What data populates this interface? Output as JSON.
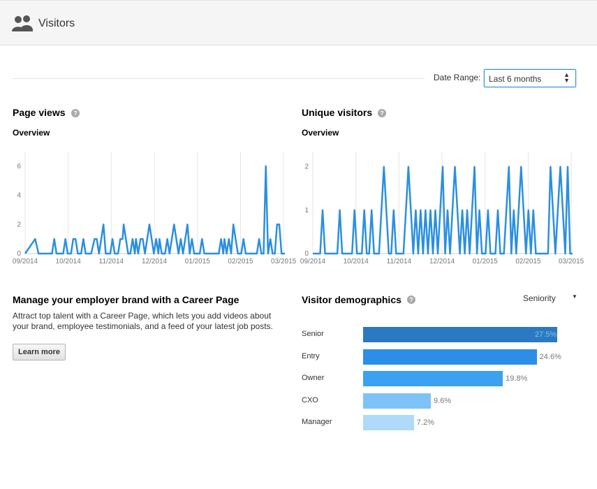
{
  "header": {
    "title": "Visitors",
    "icon": "users-icon"
  },
  "date_range": {
    "label": "Date Range:",
    "selected": "Last 6 months"
  },
  "page_views": {
    "title": "Page views",
    "subtitle": "Overview",
    "chart_data": {
      "type": "line",
      "color": "#2b8fe0",
      "x_ticks": [
        "09/2014",
        "10/2014",
        "11/2014",
        "12/2014",
        "01/2015",
        "02/2015",
        "03/2015"
      ],
      "y_ticks": [
        "0",
        "2",
        "4",
        "6"
      ],
      "ylim": [
        0,
        7
      ],
      "grid": true,
      "spikes": [
        [
          9,
          1
        ],
        [
          12,
          0
        ],
        [
          24,
          0
        ],
        [
          26,
          1
        ],
        [
          28,
          0
        ],
        [
          34,
          0
        ],
        [
          36,
          1
        ],
        [
          38,
          0
        ],
        [
          41,
          0
        ],
        [
          43,
          1
        ],
        [
          45,
          1
        ],
        [
          47,
          0
        ],
        [
          50,
          0
        ],
        [
          52,
          1
        ],
        [
          54,
          0
        ],
        [
          59,
          0
        ],
        [
          62,
          1
        ],
        [
          64,
          1
        ],
        [
          66,
          0
        ],
        [
          68,
          1
        ],
        [
          70,
          2
        ],
        [
          72,
          0
        ],
        [
          76,
          0
        ],
        [
          78,
          1
        ],
        [
          80,
          0
        ],
        [
          83,
          0
        ],
        [
          85,
          1
        ],
        [
          87,
          1
        ],
        [
          88,
          2
        ],
        [
          90,
          1
        ],
        [
          92,
          0
        ],
        [
          94,
          0
        ],
        [
          96,
          1
        ],
        [
          98,
          0
        ],
        [
          99,
          1
        ],
        [
          101,
          0
        ],
        [
          103,
          1
        ],
        [
          105,
          1
        ],
        [
          107,
          0
        ],
        [
          109,
          1
        ],
        [
          111,
          2
        ],
        [
          113,
          1
        ],
        [
          115,
          0
        ],
        [
          117,
          1
        ],
        [
          119,
          0
        ],
        [
          120,
          1
        ],
        [
          122,
          0
        ],
        [
          125,
          0
        ],
        [
          127,
          1
        ],
        [
          129,
          0
        ],
        [
          131,
          1
        ],
        [
          133,
          2
        ],
        [
          135,
          1
        ],
        [
          137,
          0
        ],
        [
          139,
          1
        ],
        [
          141,
          0
        ],
        [
          143,
          1
        ],
        [
          145,
          2
        ],
        [
          147,
          0
        ],
        [
          149,
          1
        ],
        [
          151,
          0
        ],
        [
          156,
          0
        ],
        [
          158,
          1
        ],
        [
          160,
          0
        ],
        [
          173,
          0
        ],
        [
          175,
          1
        ],
        [
          177,
          0
        ],
        [
          178,
          1
        ],
        [
          180,
          0
        ],
        [
          182,
          1
        ],
        [
          184,
          0
        ],
        [
          186,
          2
        ],
        [
          188,
          1
        ],
        [
          190,
          0
        ],
        [
          193,
          0
        ],
        [
          195,
          1
        ],
        [
          197,
          0
        ],
        [
          207,
          0
        ],
        [
          209,
          1
        ],
        [
          211,
          0
        ],
        [
          213,
          0
        ],
        [
          215,
          6
        ],
        [
          217,
          0
        ],
        [
          219,
          1
        ],
        [
          221,
          0
        ],
        [
          223,
          0
        ],
        [
          225,
          2
        ],
        [
          227,
          2
        ],
        [
          229,
          0
        ]
      ],
      "x_max": 232
    }
  },
  "unique_visitors": {
    "title": "Unique visitors",
    "subtitle": "Overview",
    "chart_data": {
      "type": "line",
      "color": "#2b8fe0",
      "x_ticks": [
        "09/2014",
        "10/2014",
        "11/2014",
        "12/2014",
        "01/2015",
        "02/2015",
        "03/2015"
      ],
      "y_ticks": [
        "0",
        "1",
        "2"
      ],
      "ylim": [
        0,
        2.35
      ],
      "grid": true,
      "spikes": [
        [
          6,
          0
        ],
        [
          8,
          1
        ],
        [
          10,
          0
        ],
        [
          20,
          0
        ],
        [
          22,
          1
        ],
        [
          24,
          0
        ],
        [
          32,
          0
        ],
        [
          34,
          1
        ],
        [
          36,
          0
        ],
        [
          40,
          0
        ],
        [
          42,
          1
        ],
        [
          44,
          0
        ],
        [
          46,
          0
        ],
        [
          48,
          1
        ],
        [
          50,
          0
        ],
        [
          54,
          0
        ],
        [
          56,
          1
        ],
        [
          58,
          2
        ],
        [
          60,
          1
        ],
        [
          62,
          0
        ],
        [
          64,
          0
        ],
        [
          66,
          1
        ],
        [
          68,
          0
        ],
        [
          74,
          0
        ],
        [
          76,
          1
        ],
        [
          78,
          2
        ],
        [
          80,
          1
        ],
        [
          82,
          0
        ],
        [
          84,
          1
        ],
        [
          86,
          0
        ],
        [
          88,
          1
        ],
        [
          90,
          0
        ],
        [
          92,
          1
        ],
        [
          94,
          0
        ],
        [
          96,
          1
        ],
        [
          98,
          0
        ],
        [
          100,
          1
        ],
        [
          102,
          0
        ],
        [
          104,
          1
        ],
        [
          106,
          2
        ],
        [
          108,
          0
        ],
        [
          110,
          1
        ],
        [
          112,
          0
        ],
        [
          114,
          1
        ],
        [
          116,
          2
        ],
        [
          118,
          1
        ],
        [
          120,
          0
        ],
        [
          122,
          1
        ],
        [
          124,
          0
        ],
        [
          126,
          1
        ],
        [
          128,
          0
        ],
        [
          130,
          1
        ],
        [
          132,
          2
        ],
        [
          134,
          0
        ],
        [
          136,
          1
        ],
        [
          138,
          0
        ],
        [
          141,
          0
        ],
        [
          143,
          1
        ],
        [
          145,
          0
        ],
        [
          149,
          0
        ],
        [
          151,
          1
        ],
        [
          153,
          0
        ],
        [
          156,
          0
        ],
        [
          158,
          1
        ],
        [
          160,
          2
        ],
        [
          162,
          0
        ],
        [
          164,
          1
        ],
        [
          166,
          0
        ],
        [
          168,
          1
        ],
        [
          170,
          2
        ],
        [
          172,
          1
        ],
        [
          174,
          0
        ],
        [
          176,
          1
        ],
        [
          178,
          0
        ],
        [
          180,
          1
        ],
        [
          182,
          0
        ],
        [
          192,
          0
        ],
        [
          194,
          2
        ],
        [
          196,
          1
        ],
        [
          198,
          0
        ],
        [
          200,
          1
        ],
        [
          202,
          2
        ],
        [
          204,
          1
        ],
        [
          206,
          0
        ],
        [
          208,
          2
        ],
        [
          210,
          0
        ]
      ],
      "x_max": 212
    }
  },
  "career": {
    "title": "Manage your employer brand with a Career Page",
    "description": "Attract top talent with a Career Page, which lets you add videos about your brand, employee testimonials, and a feed of your latest job posts.",
    "button": "Learn more"
  },
  "demographics": {
    "title": "Visitor demographics",
    "selector": "Seniority",
    "chart_data": {
      "type": "bar",
      "orientation": "horizontal",
      "categories": [
        "Senior",
        "Entry",
        "Owner",
        "CXO",
        "Manager"
      ],
      "values": [
        27.5,
        24.6,
        19.8,
        9.6,
        7.2
      ],
      "labels": [
        "27.5%",
        "24.6%",
        "19.8%",
        "9.6%",
        "7.2%"
      ],
      "colors": [
        "#2a79c2",
        "#2c8ee6",
        "#3ba1f0",
        "#7ec3f7",
        "#afdaf9"
      ],
      "max": 27.5
    }
  }
}
